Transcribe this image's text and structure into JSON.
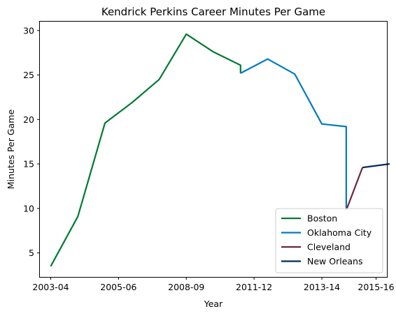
{
  "chart_data": {
    "type": "line",
    "title": "Kendrick Perkins Career Minutes Per Game",
    "xlabel": "Year",
    "ylabel": "Minutes Per Game",
    "xlim": [
      -0.4,
      12.4
    ],
    "ylim": [
      2.3,
      31.0
    ],
    "x_ticks": [
      {
        "x": 0,
        "label": "2003-04"
      },
      {
        "x": 2.5,
        "label": "2005-06"
      },
      {
        "x": 5,
        "label": "2008-09"
      },
      {
        "x": 7.5,
        "label": "2011-12"
      },
      {
        "x": 10,
        "label": "2013-14"
      },
      {
        "x": 12,
        "label": "2015-16"
      }
    ],
    "y_ticks": [
      5,
      10,
      15,
      20,
      25,
      30
    ],
    "grid": false,
    "legend_position": "bottom-right",
    "series": [
      {
        "name": "Boston",
        "color": "#007a33",
        "points": [
          [
            0,
            3.5
          ],
          [
            1,
            9.1
          ],
          [
            2,
            19.6
          ],
          [
            3,
            21.9
          ],
          [
            4,
            24.5
          ],
          [
            5,
            29.6
          ],
          [
            6,
            27.6
          ],
          [
            7,
            26.1
          ],
          [
            7,
            25.2
          ]
        ]
      },
      {
        "name": "Oklahoma City",
        "color": "#007ac1",
        "points": [
          [
            7,
            25.2
          ],
          [
            8,
            26.8
          ],
          [
            9,
            25.1
          ],
          [
            10,
            19.5
          ],
          [
            10.9,
            19.2
          ],
          [
            10.9,
            9.8
          ]
        ]
      },
      {
        "name": "Cleveland",
        "color": "#6f263d",
        "points": [
          [
            10.9,
            9.8
          ],
          [
            11.5,
            14.6
          ]
        ]
      },
      {
        "name": "New Orleans",
        "color": "#002b5c",
        "points": [
          [
            11.5,
            14.6
          ],
          [
            12.5,
            15.0
          ]
        ]
      }
    ]
  }
}
